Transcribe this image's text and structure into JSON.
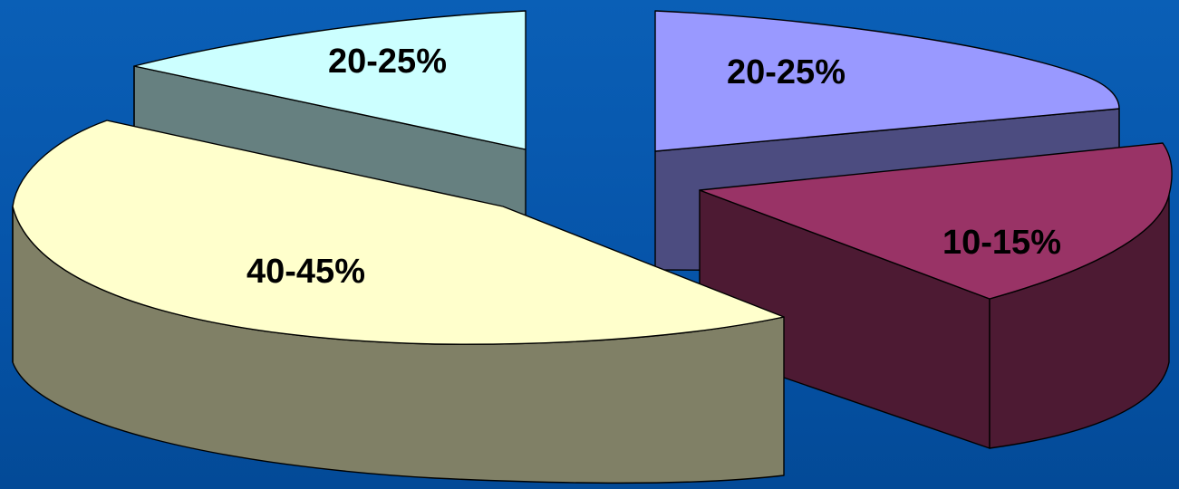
{
  "chart_data": {
    "type": "pie",
    "style": "3d-exploded",
    "legend": "none",
    "slices": [
      {
        "label": "40-45%",
        "value": 42.5,
        "top_color": "#ffffcc",
        "side_color": "#808066"
      },
      {
        "label": "20-25%",
        "value": 22.5,
        "top_color": "#ccffff",
        "side_color": "#668080"
      },
      {
        "label": "20-25%",
        "value": 22.5,
        "top_color": "#9999ff",
        "side_color": "#4c4c80"
      },
      {
        "label": "10-15%",
        "value": 12.5,
        "top_color": "#993366",
        "side_color": "#4d1a33"
      }
    ]
  }
}
